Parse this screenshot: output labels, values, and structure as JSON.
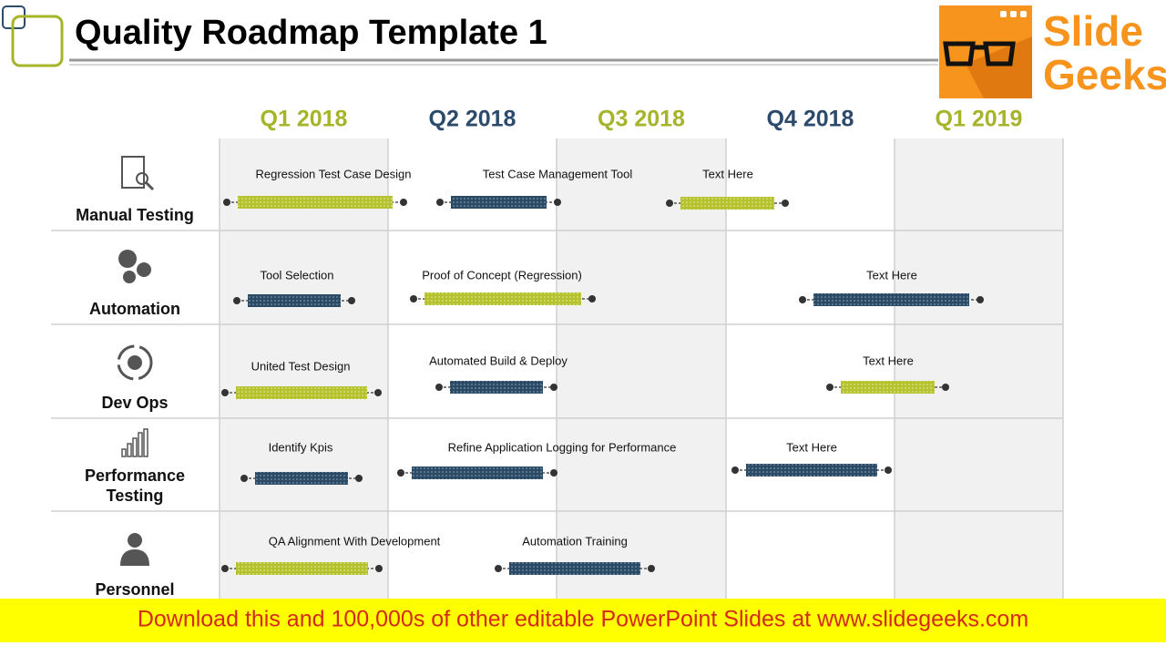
{
  "header": {
    "title": "Quality Roadmap Template 1"
  },
  "logo": {
    "line1": "Slide",
    "line2": "Geeks"
  },
  "columns": [
    "Q1 2018",
    "Q2 2018",
    "Q3 2018",
    "Q4 2018",
    "Q1 2019"
  ],
  "rows": [
    {
      "label": "Manual Testing",
      "items": [
        "Regression Test Case Design",
        "Test Case Management Tool",
        "Text Here"
      ]
    },
    {
      "label": "Automation",
      "items": [
        "Tool Selection",
        "Proof of Concept (Regression)",
        "Text Here"
      ]
    },
    {
      "label": "Dev Ops",
      "items": [
        "United Test Design",
        "Automated Build & Deploy",
        "Text Here"
      ]
    },
    {
      "label": "Performance Testing",
      "items": [
        "Identify Kpis",
        "Refine Application Logging for Performance",
        "Text Here"
      ]
    },
    {
      "label": "Personnel",
      "items": [
        "QA Alignment With Development",
        "Automation Training"
      ]
    }
  ],
  "footer": {
    "text": "Download this and 100,000s of other editable PowerPoint Slides at www.slidegeeks.com"
  }
}
